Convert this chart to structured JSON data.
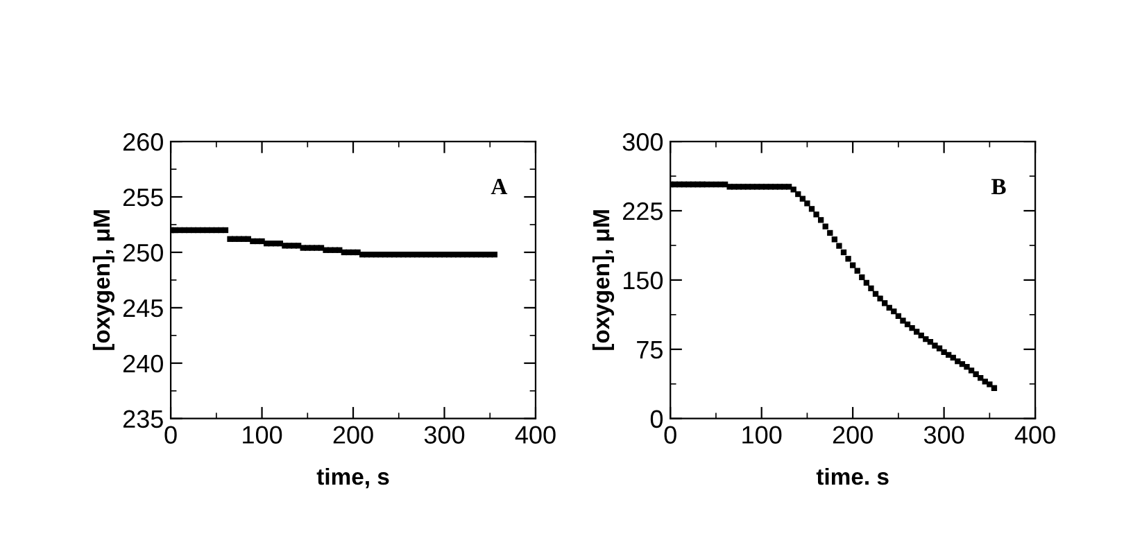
{
  "chart_data": [
    {
      "type": "scatter",
      "xlabel": "time, s",
      "ylabel": "[oxygen], μM",
      "annotations": [
        "A"
      ],
      "marker": "square",
      "grid": false,
      "legend": false,
      "xlim": [
        0,
        400
      ],
      "xticks": [
        0,
        100,
        200,
        300,
        400
      ],
      "ylim": [
        235,
        260
      ],
      "yticks": [
        235,
        240,
        245,
        250,
        255,
        260
      ],
      "series": [
        {
          "color": "#000000",
          "x": [
            0,
            5,
            10,
            15,
            20,
            25,
            30,
            35,
            40,
            45,
            50,
            55,
            60,
            65,
            70,
            75,
            80,
            85,
            90,
            95,
            100,
            105,
            110,
            115,
            120,
            125,
            130,
            135,
            140,
            145,
            150,
            155,
            160,
            165,
            170,
            175,
            180,
            185,
            190,
            195,
            200,
            205,
            210,
            215,
            220,
            225,
            230,
            235,
            240,
            245,
            250,
            255,
            260,
            265,
            270,
            275,
            280,
            285,
            290,
            295,
            300,
            305,
            310,
            315,
            320,
            325,
            330,
            335,
            340,
            345,
            350,
            355
          ],
          "values": [
            252,
            252,
            252,
            252,
            252,
            252,
            252,
            252,
            252,
            252,
            252,
            252,
            252,
            251.2,
            251.2,
            251.2,
            251.2,
            251.2,
            251,
            251,
            251,
            250.8,
            250.8,
            250.8,
            250.8,
            250.6,
            250.6,
            250.6,
            250.6,
            250.4,
            250.4,
            250.4,
            250.4,
            250.4,
            250.2,
            250.2,
            250.2,
            250.2,
            250,
            250,
            250,
            250,
            249.8,
            249.8,
            249.8,
            249.8,
            249.8,
            249.8,
            249.8,
            249.8,
            249.8,
            249.8,
            249.8,
            249.8,
            249.8,
            249.8,
            249.8,
            249.8,
            249.8,
            249.8,
            249.8,
            249.8,
            249.8,
            249.8,
            249.8,
            249.8,
            249.8,
            249.8,
            249.8,
            249.8,
            249.8,
            249.8
          ]
        }
      ]
    },
    {
      "type": "scatter",
      "xlabel": "time. s",
      "ylabel": "[oxygen], μM",
      "annotations": [
        "B"
      ],
      "marker": "square",
      "grid": false,
      "legend": false,
      "xlim": [
        0,
        400
      ],
      "xticks": [
        0,
        100,
        200,
        300,
        400
      ],
      "ylim": [
        0,
        300
      ],
      "yticks": [
        0,
        75,
        150,
        225,
        300
      ],
      "series": [
        {
          "color": "#000000",
          "x": [
            0,
            5,
            10,
            15,
            20,
            25,
            30,
            35,
            40,
            45,
            50,
            55,
            60,
            65,
            70,
            75,
            80,
            85,
            90,
            95,
            100,
            105,
            110,
            115,
            120,
            125,
            130,
            135,
            140,
            145,
            150,
            155,
            160,
            165,
            170,
            175,
            180,
            185,
            190,
            195,
            200,
            205,
            210,
            215,
            220,
            225,
            230,
            235,
            240,
            245,
            250,
            255,
            260,
            265,
            270,
            275,
            280,
            285,
            290,
            295,
            300,
            305,
            310,
            315,
            320,
            325,
            330,
            335,
            340,
            345,
            350,
            355
          ],
          "values": [
            253.5,
            253.5,
            253.5,
            253.5,
            253.5,
            253.5,
            253.5,
            253.5,
            253.5,
            253.5,
            253.5,
            253.5,
            253.5,
            251,
            251,
            251,
            251,
            251,
            251,
            251,
            251,
            251,
            251,
            251,
            251,
            251,
            251,
            248,
            243,
            238,
            233,
            227,
            221,
            215,
            208,
            201,
            194,
            187,
            180,
            173,
            166,
            160,
            153,
            147,
            141,
            135,
            130,
            125,
            120,
            116,
            111,
            106,
            102,
            98,
            94,
            90,
            86,
            83,
            79,
            76,
            72,
            69,
            66,
            62,
            59,
            56,
            52,
            48,
            44,
            40,
            37,
            33
          ]
        }
      ]
    }
  ]
}
